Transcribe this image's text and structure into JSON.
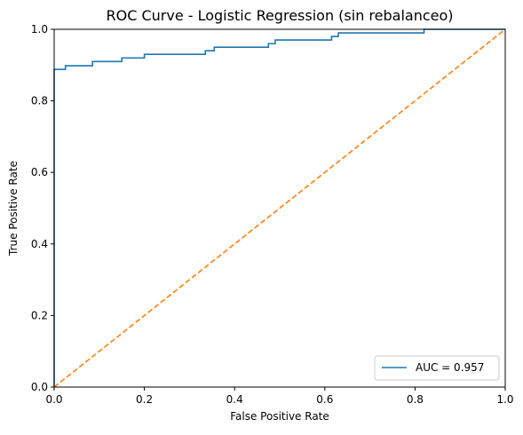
{
  "chart_data": {
    "type": "line",
    "title": "ROC Curve - Logistic Regression (sin rebalanceo)",
    "xlabel": "False Positive Rate",
    "ylabel": "True Positive Rate",
    "xlim": [
      0.0,
      1.0
    ],
    "ylim": [
      0.0,
      1.0
    ],
    "x_ticks": [
      "0.0",
      "0.2",
      "0.4",
      "0.6",
      "0.8",
      "1.0"
    ],
    "y_ticks": [
      "0.0",
      "0.2",
      "0.4",
      "0.6",
      "0.8",
      "1.0"
    ],
    "grid": false,
    "legend_position": "lower-right",
    "series": [
      {
        "name": "AUC = 0.957",
        "style": "step",
        "color": "#1f77b4",
        "x": [
          0.0,
          0.0,
          0.0,
          0.025,
          0.025,
          0.085,
          0.085,
          0.15,
          0.15,
          0.2,
          0.2,
          0.335,
          0.335,
          0.355,
          0.355,
          0.475,
          0.475,
          0.49,
          0.49,
          0.615,
          0.615,
          0.63,
          0.63,
          0.82,
          0.82,
          1.0
        ],
        "y": [
          0.0,
          0.725,
          0.888,
          0.888,
          0.898,
          0.898,
          0.91,
          0.91,
          0.92,
          0.92,
          0.93,
          0.93,
          0.94,
          0.94,
          0.95,
          0.95,
          0.96,
          0.96,
          0.97,
          0.97,
          0.98,
          0.98,
          0.99,
          0.99,
          1.0,
          1.0
        ]
      },
      {
        "name": "",
        "style": "dashed",
        "color": "#ff7f0e",
        "x": [
          0.0,
          1.0
        ],
        "y": [
          0.0,
          1.0
        ]
      }
    ]
  }
}
